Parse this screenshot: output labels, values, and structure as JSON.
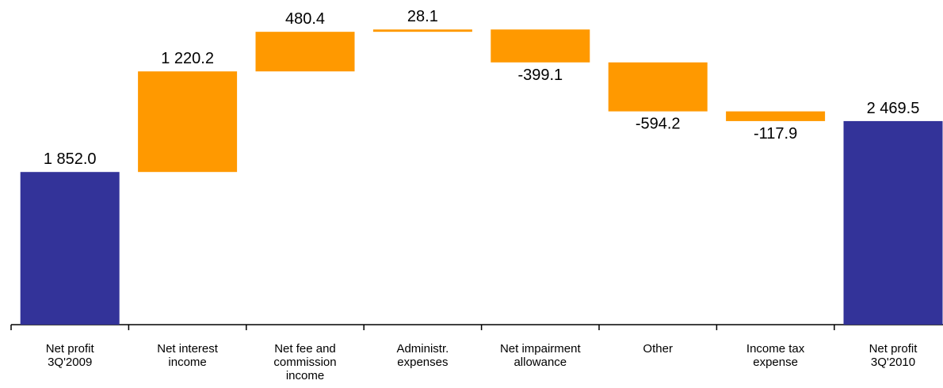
{
  "chart_data": {
    "type": "waterfall",
    "categories": [
      "Net profit\n3Q'2009",
      "Net interest\nincome",
      "Net fee and\ncommission\nincome",
      "Administr.\nexpenses",
      "Net impairment\nallowance",
      "Other",
      "Income tax\nexpense",
      "Net profit\n3Q'2010"
    ],
    "values": [
      1852.0,
      1220.2,
      480.4,
      28.1,
      -399.1,
      -594.2,
      -117.9,
      2469.5
    ],
    "value_labels": [
      "1 852.0",
      "1 220.2",
      "480.4",
      "28.1",
      "-399.1",
      "-594.2",
      "-117.9",
      "2 469.5"
    ],
    "totals": [
      0,
      7
    ],
    "total_color": "#333399",
    "change_color": "#ff9900",
    "ylim": [
      0,
      3900
    ]
  }
}
